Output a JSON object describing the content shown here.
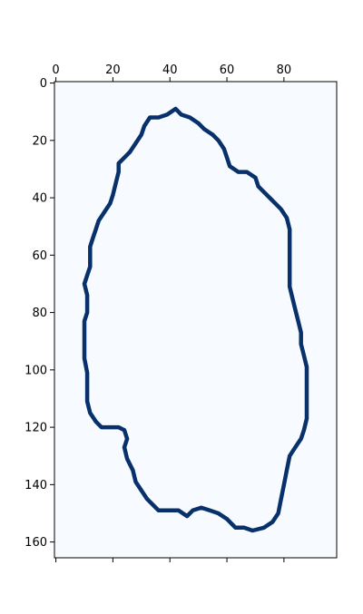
{
  "chart_data": {
    "type": "heatmap",
    "title": "",
    "xlabel": "",
    "ylabel": "",
    "x_axis_position": "top",
    "y_axis_inverted": true,
    "xlim": [
      0,
      99
    ],
    "ylim": [
      166,
      0
    ],
    "xticks": [
      "0",
      "20",
      "40",
      "60",
      "80"
    ],
    "yticks": [
      "0",
      "20",
      "40",
      "60",
      "80",
      "100",
      "120",
      "140",
      "160"
    ],
    "grid": false,
    "colormap": "Blues",
    "background_color": "#f7fbff",
    "foreground_color": "#08306b",
    "description_of_values": "binary mask: value 1 on contour pixels, 0 elsewhere",
    "contour_points": [
      [
        42,
        9
      ],
      [
        39,
        11
      ],
      [
        36,
        12
      ],
      [
        33,
        12
      ],
      [
        31,
        15
      ],
      [
        30,
        18
      ],
      [
        28,
        21
      ],
      [
        26,
        24
      ],
      [
        24,
        26
      ],
      [
        22,
        28
      ],
      [
        22,
        31
      ],
      [
        21,
        35
      ],
      [
        20,
        39
      ],
      [
        19,
        42
      ],
      [
        17,
        45
      ],
      [
        15,
        48
      ],
      [
        14,
        51
      ],
      [
        13,
        54
      ],
      [
        12,
        57
      ],
      [
        12,
        61
      ],
      [
        12,
        64
      ],
      [
        11,
        67
      ],
      [
        10,
        70
      ],
      [
        11,
        74
      ],
      [
        11,
        77
      ],
      [
        11,
        80
      ],
      [
        10,
        83
      ],
      [
        10,
        87
      ],
      [
        10,
        91
      ],
      [
        10,
        96
      ],
      [
        11,
        101
      ],
      [
        11,
        106
      ],
      [
        11,
        111
      ],
      [
        12,
        115
      ],
      [
        14,
        118
      ],
      [
        16,
        120
      ],
      [
        19,
        120
      ],
      [
        22,
        120
      ],
      [
        24,
        121
      ],
      [
        25,
        124
      ],
      [
        24,
        127
      ],
      [
        25,
        131
      ],
      [
        27,
        135
      ],
      [
        28,
        139
      ],
      [
        30,
        142
      ],
      [
        32,
        145
      ],
      [
        34,
        147
      ],
      [
        36,
        149
      ],
      [
        40,
        149
      ],
      [
        43,
        149
      ],
      [
        46,
        151
      ],
      [
        48,
        149
      ],
      [
        51,
        148
      ],
      [
        54,
        149
      ],
      [
        57,
        150
      ],
      [
        60,
        152
      ],
      [
        63,
        155
      ],
      [
        66,
        155
      ],
      [
        69,
        156
      ],
      [
        73,
        155
      ],
      [
        76,
        153
      ],
      [
        78,
        150
      ],
      [
        79,
        145
      ],
      [
        80,
        140
      ],
      [
        81,
        135
      ],
      [
        82,
        130
      ],
      [
        84,
        127
      ],
      [
        86,
        124
      ],
      [
        87,
        121
      ],
      [
        88,
        117
      ],
      [
        88,
        113
      ],
      [
        88,
        109
      ],
      [
        88,
        104
      ],
      [
        88,
        99
      ],
      [
        87,
        95
      ],
      [
        86,
        91
      ],
      [
        86,
        87
      ],
      [
        85,
        83
      ],
      [
        84,
        79
      ],
      [
        83,
        75
      ],
      [
        82,
        71
      ],
      [
        82,
        67
      ],
      [
        82,
        63
      ],
      [
        82,
        59
      ],
      [
        82,
        55
      ],
      [
        82,
        51
      ],
      [
        81,
        47
      ],
      [
        79,
        44
      ],
      [
        77,
        42
      ],
      [
        75,
        40
      ],
      [
        73,
        38
      ],
      [
        71,
        36
      ],
      [
        70,
        33
      ],
      [
        67,
        31
      ],
      [
        64,
        31
      ],
      [
        61,
        29
      ],
      [
        60,
        26
      ],
      [
        59,
        23
      ],
      [
        57,
        20
      ],
      [
        55,
        18
      ],
      [
        52,
        16
      ],
      [
        50,
        14
      ],
      [
        47,
        12
      ],
      [
        44,
        11
      ]
    ]
  }
}
